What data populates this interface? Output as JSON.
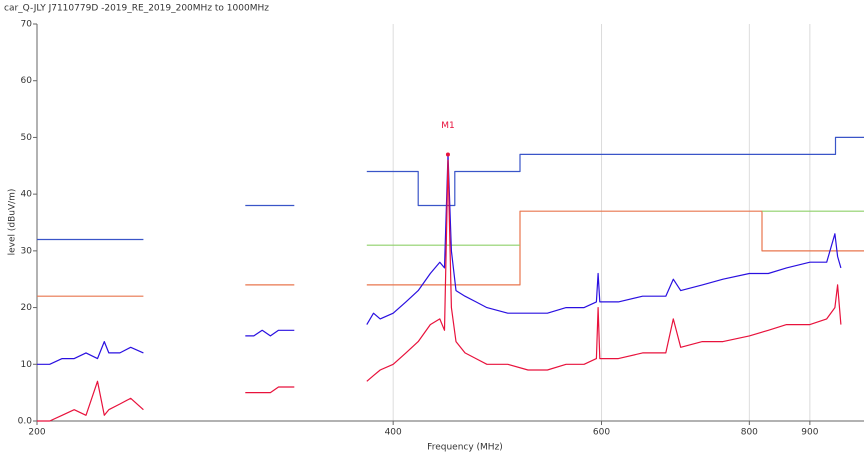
{
  "chart_data": {
    "type": "line",
    "title": "car_Q-JLY J7110779D -2019_RE_2019_200MHz to 1000MHz",
    "x_label": "Frequency (MHz)",
    "y_label": "level (dBuV/m)",
    "xscale": "log",
    "xlim": [
      200,
      1000
    ],
    "xticks": [
      200,
      400,
      600,
      800,
      900
    ],
    "ylim": [
      0,
      70
    ],
    "yticks": [
      {
        "value": 0,
        "label": "0.0"
      },
      10,
      20,
      30,
      40,
      50,
      60,
      70
    ],
    "grid": "x",
    "series": [
      {
        "color": "#3a55c8",
        "x": [
          200,
          246,
          null,
          300,
          330,
          null,
          380,
          420,
          420,
          451,
          451,
          512,
          512,
          946,
          946,
          1000
        ],
        "values": [
          32,
          32,
          null,
          38,
          38,
          null,
          44,
          44,
          38,
          38,
          44,
          44,
          47,
          47,
          50,
          50
        ]
      },
      {
        "color": "#e8764e",
        "x": [
          200,
          246,
          null,
          300,
          330,
          null,
          380,
          512,
          512,
          820,
          820,
          1000
        ],
        "values": [
          22,
          22,
          null,
          24,
          24,
          null,
          24,
          24,
          37,
          37,
          30,
          30
        ]
      },
      {
        "color": "#8fd06a",
        "x": [
          380,
          512,
          null,
          820,
          1000
        ],
        "values": [
          31,
          31,
          null,
          37,
          37
        ]
      },
      {
        "color": "#2a10e0",
        "x": [
          200,
          205,
          210,
          215,
          220,
          225,
          228,
          230,
          235,
          240,
          246,
          null,
          300,
          305,
          310,
          315,
          320,
          325,
          330,
          null,
          380,
          385,
          390,
          400,
          410,
          420,
          430,
          438,
          442,
          445,
          448,
          452,
          460,
          470,
          480,
          500,
          520,
          540,
          560,
          580,
          594,
          596,
          598,
          620,
          650,
          680,
          690,
          700,
          730,
          760,
          800,
          830,
          860,
          900,
          930,
          945,
          950,
          956
        ],
        "values": [
          10,
          10,
          11,
          11,
          12,
          11,
          14,
          12,
          12,
          13,
          12,
          null,
          15,
          15,
          16,
          15,
          16,
          16,
          16,
          null,
          17,
          19,
          18,
          19,
          21,
          23,
          26,
          28,
          27,
          47,
          30,
          23,
          22,
          21,
          20,
          19,
          19,
          19,
          20,
          20,
          21,
          26,
          21,
          21,
          22,
          22,
          25,
          23,
          24,
          25,
          26,
          26,
          27,
          28,
          28,
          33,
          29,
          27
        ]
      },
      {
        "color": "#e8123c",
        "x": [
          200,
          205,
          210,
          215,
          220,
          225,
          228,
          230,
          235,
          240,
          246,
          null,
          300,
          305,
          310,
          315,
          320,
          325,
          330,
          null,
          380,
          385,
          390,
          400,
          410,
          420,
          430,
          438,
          442,
          445,
          448,
          452,
          460,
          470,
          480,
          500,
          520,
          540,
          560,
          580,
          594,
          596,
          598,
          620,
          650,
          680,
          690,
          700,
          730,
          760,
          800,
          830,
          860,
          900,
          930,
          945,
          950,
          956
        ],
        "values": [
          0,
          0,
          1,
          2,
          1,
          7,
          1,
          2,
          3,
          4,
          2,
          null,
          5,
          5,
          5,
          5,
          6,
          6,
          6,
          null,
          7,
          8,
          9,
          10,
          12,
          14,
          17,
          18,
          16,
          46,
          20,
          14,
          12,
          11,
          10,
          10,
          9,
          9,
          10,
          10,
          11,
          20,
          11,
          11,
          12,
          12,
          18,
          13,
          14,
          14,
          15,
          16,
          17,
          17,
          18,
          20,
          24,
          17
        ]
      }
    ],
    "markers": [
      {
        "label": "M1",
        "x": 445,
        "y": 47,
        "color": "#e8123c"
      }
    ]
  }
}
